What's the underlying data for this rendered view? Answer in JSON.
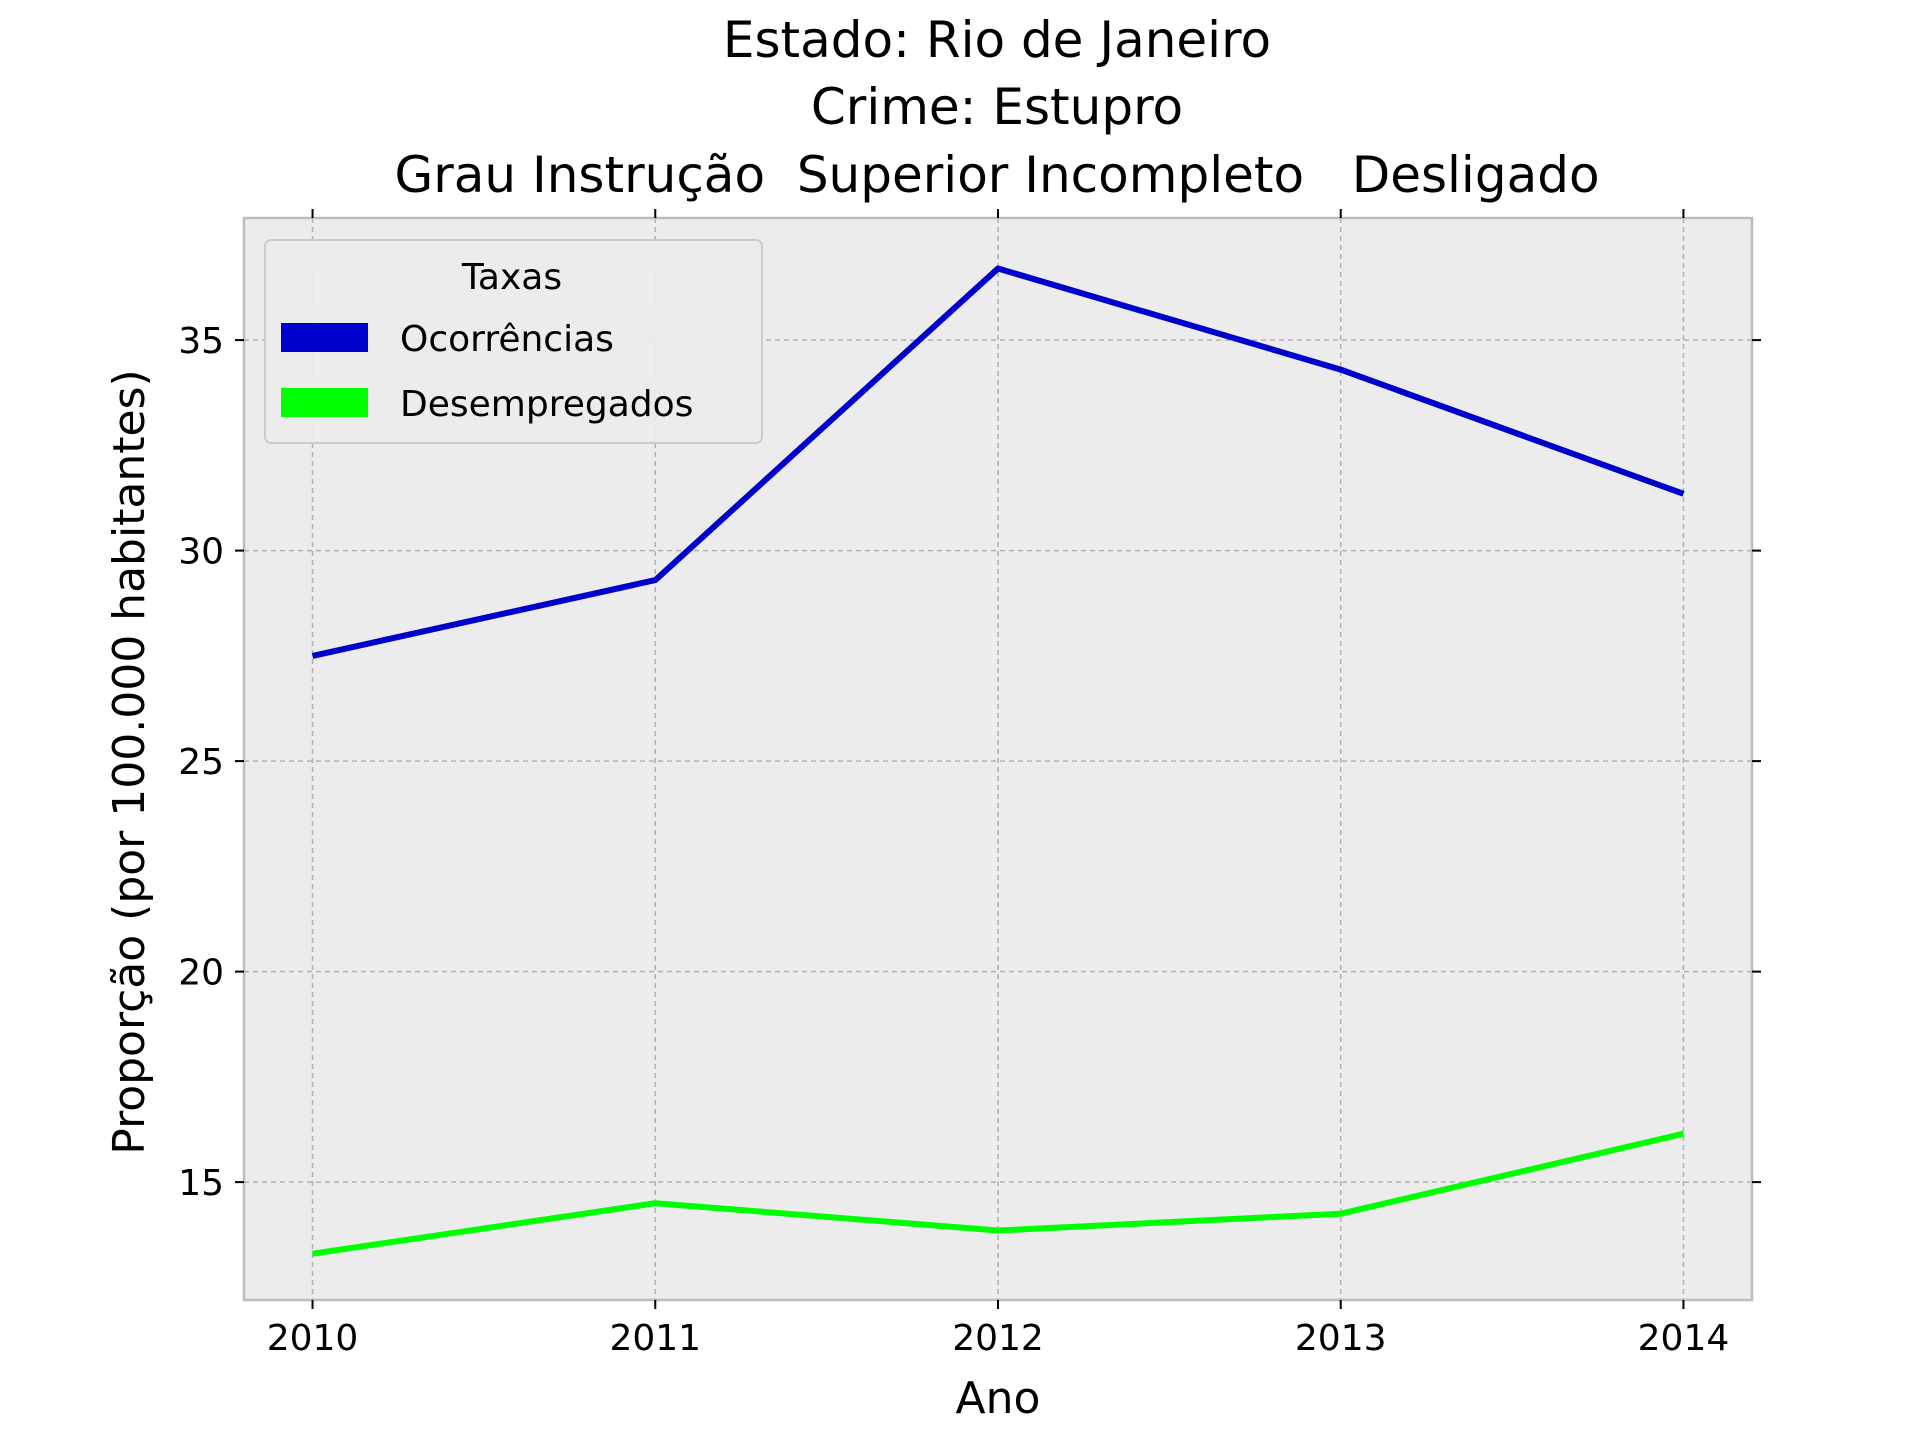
{
  "chart_data": {
    "type": "line",
    "title_lines": [
      "Estado: Rio de Janeiro",
      "Crime: Estupro",
      "Grau Instrução  Superior Incompleto   Desligado"
    ],
    "xlabel": "Ano",
    "ylabel": "Proporção (por 100.000 habitantes)",
    "x": [
      2010,
      2011,
      2012,
      2013,
      2014
    ],
    "x_tick_labels": [
      "2010",
      "2011",
      "2012",
      "2013",
      "2014"
    ],
    "y_ticks": [
      15,
      20,
      25,
      30,
      35
    ],
    "y_tick_labels": [
      "15",
      "20",
      "25",
      "30",
      "35"
    ],
    "xlim": [
      2009.8,
      2014.2
    ],
    "ylim": [
      12.2,
      37.9
    ],
    "grid": true,
    "legend": {
      "title": "Taxas",
      "placement": "upper-left"
    },
    "series": [
      {
        "name": "Ocorrências",
        "color": "#0000cd",
        "values": [
          27.5,
          29.3,
          36.7,
          34.3,
          31.35
        ]
      },
      {
        "name": "Desempregados",
        "color": "#00ff00",
        "values": [
          13.3,
          14.5,
          13.85,
          14.25,
          16.15
        ]
      }
    ],
    "colors": {
      "plot_background": "#ececec",
      "frame": "#bcbcbc",
      "grid": "#b0b0b0"
    }
  }
}
